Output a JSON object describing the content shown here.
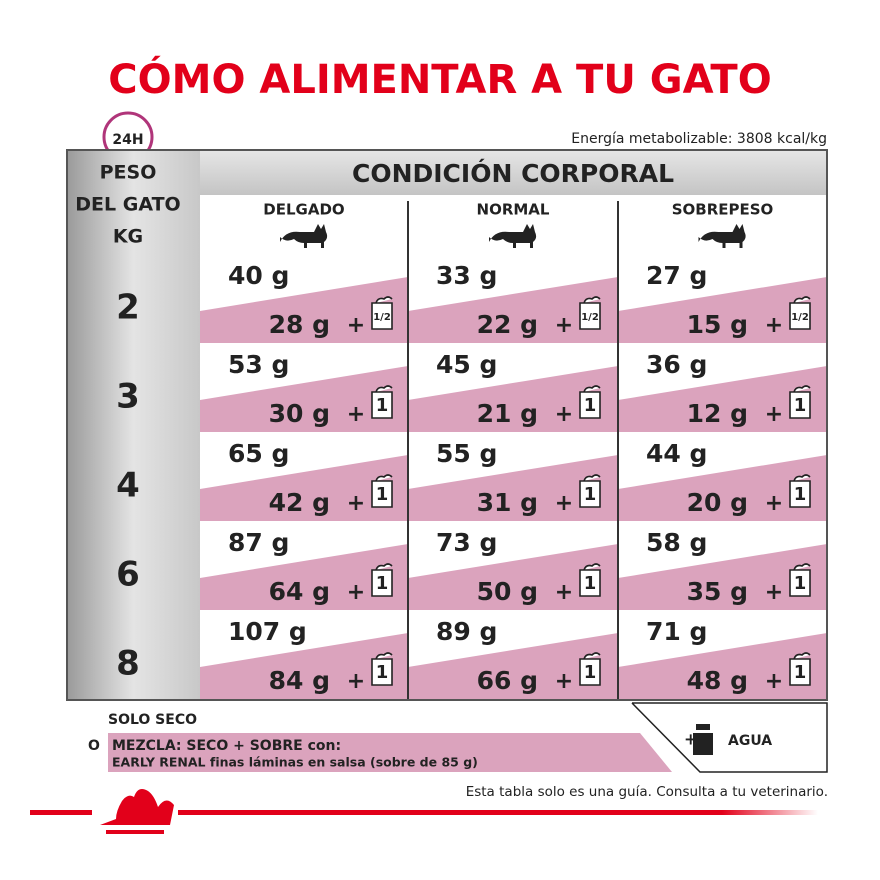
{
  "header": {
    "title": "CÓMO ALIMENTAR A TU GATO",
    "badge": "24H",
    "energy": "Energía metabolizable: 3808 kcal/kg"
  },
  "table": {
    "weight_label": [
      "PESO",
      "DEL GATO",
      "KG"
    ],
    "condition_label": "CONDICIÓN CORPORAL",
    "columns": [
      "DELGADO",
      "NORMAL",
      "SOBREPESO"
    ],
    "plus": "+",
    "rows": [
      {
        "weight": "2",
        "cells": [
          {
            "dry": "40 g",
            "mix": "28 g",
            "pouch": "1/2"
          },
          {
            "dry": "33 g",
            "mix": "22 g",
            "pouch": "1/2"
          },
          {
            "dry": "27 g",
            "mix": "15 g",
            "pouch": "1/2"
          }
        ]
      },
      {
        "weight": "3",
        "cells": [
          {
            "dry": "53 g",
            "mix": "30 g",
            "pouch": "1"
          },
          {
            "dry": "45 g",
            "mix": "21 g",
            "pouch": "1"
          },
          {
            "dry": "36 g",
            "mix": "12 g",
            "pouch": "1"
          }
        ]
      },
      {
        "weight": "4",
        "cells": [
          {
            "dry": "65 g",
            "mix": "42 g",
            "pouch": "1"
          },
          {
            "dry": "55 g",
            "mix": "31 g",
            "pouch": "1"
          },
          {
            "dry": "44 g",
            "mix": "20 g",
            "pouch": "1"
          }
        ]
      },
      {
        "weight": "6",
        "cells": [
          {
            "dry": "87 g",
            "mix": "64 g",
            "pouch": "1"
          },
          {
            "dry": "73 g",
            "mix": "50 g",
            "pouch": "1"
          },
          {
            "dry": "58 g",
            "mix": "35 g",
            "pouch": "1"
          }
        ]
      },
      {
        "weight": "8",
        "cells": [
          {
            "dry": "107 g",
            "mix": "84 g",
            "pouch": "1"
          },
          {
            "dry": "89 g",
            "mix": "66 g",
            "pouch": "1"
          },
          {
            "dry": "71 g",
            "mix": "48 g",
            "pouch": "1"
          }
        ]
      }
    ]
  },
  "legend": {
    "dry_only": "SOLO SECO",
    "or": "O",
    "mix_title": "MEZCLA: SECO + SOBRE con:",
    "mix_detail": "EARLY RENAL finas láminas en salsa (sobre de 85 g)",
    "water_plus": "+",
    "water": "AGUA"
  },
  "footer": {
    "note": "Esta tabla solo es una guía. Consulta a tu veterinario."
  }
}
